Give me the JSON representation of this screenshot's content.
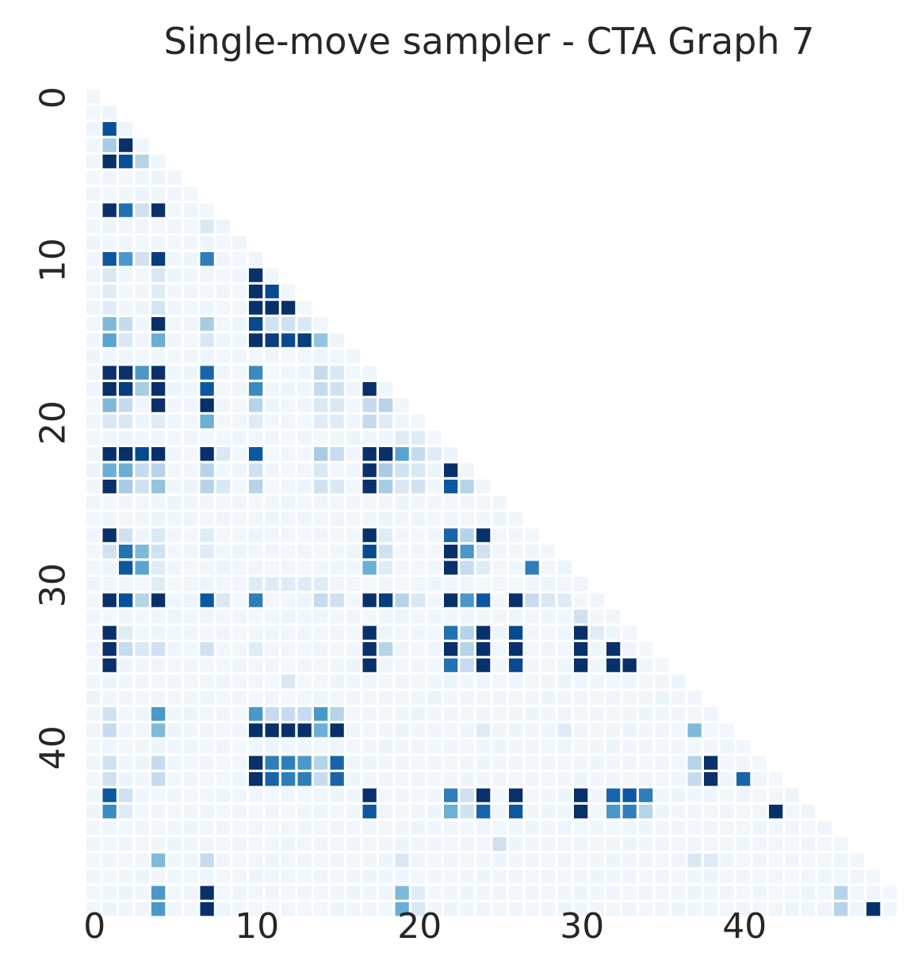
{
  "chart_data": {
    "type": "heatmap",
    "title": "Single-move sampler - CTA Graph 7",
    "n": 50,
    "shape": "lower-triangular",
    "colormap": "Blues",
    "colors": {
      "background": "#ffffff",
      "text": "#262626",
      "cmap_low": "#f7fbff",
      "cmap_high": "#08306b"
    },
    "xaxis": {
      "tick_values": [
        0,
        10,
        20,
        30,
        40
      ],
      "tick_labels": [
        "0",
        "10",
        "20",
        "30",
        "40"
      ]
    },
    "yaxis": {
      "tick_values": [
        0,
        10,
        20,
        30,
        40
      ],
      "tick_labels": [
        "0",
        "10",
        "20",
        "30",
        "40"
      ]
    },
    "grid": false,
    "colorbar": false,
    "value_range": [
      0,
      1
    ],
    "background_level": 0.05,
    "cells": [
      [
        2,
        1,
        0.88
      ],
      [
        3,
        1,
        0.35
      ],
      [
        3,
        2,
        1.0
      ],
      [
        4,
        1,
        1.0
      ],
      [
        4,
        2,
        0.88
      ],
      [
        4,
        3,
        0.3
      ],
      [
        7,
        1,
        1.0
      ],
      [
        7,
        2,
        0.75
      ],
      [
        7,
        3,
        0.2
      ],
      [
        7,
        4,
        1.0
      ],
      [
        8,
        7,
        0.15
      ],
      [
        10,
        1,
        0.85
      ],
      [
        10,
        2,
        0.6
      ],
      [
        10,
        3,
        0.2
      ],
      [
        10,
        4,
        0.95
      ],
      [
        10,
        7,
        0.7
      ],
      [
        11,
        1,
        0.15
      ],
      [
        11,
        4,
        0.15
      ],
      [
        11,
        10,
        1.0
      ],
      [
        12,
        1,
        0.12
      ],
      [
        12,
        4,
        0.12
      ],
      [
        12,
        10,
        1.0
      ],
      [
        12,
        11,
        0.9
      ],
      [
        13,
        1,
        0.12
      ],
      [
        13,
        4,
        0.18
      ],
      [
        13,
        10,
        1.0
      ],
      [
        13,
        11,
        1.0
      ],
      [
        13,
        12,
        1.0
      ],
      [
        14,
        1,
        0.45
      ],
      [
        14,
        2,
        0.25
      ],
      [
        14,
        4,
        1.0
      ],
      [
        14,
        7,
        0.35
      ],
      [
        14,
        10,
        0.9
      ],
      [
        14,
        11,
        0.2
      ],
      [
        14,
        12,
        0.2
      ],
      [
        14,
        13,
        0.15
      ],
      [
        15,
        1,
        0.55
      ],
      [
        15,
        2,
        0.15
      ],
      [
        15,
        4,
        0.5
      ],
      [
        15,
        7,
        0.15
      ],
      [
        15,
        10,
        1.0
      ],
      [
        15,
        11,
        0.95
      ],
      [
        15,
        12,
        0.9
      ],
      [
        15,
        13,
        0.95
      ],
      [
        15,
        14,
        0.4
      ],
      [
        17,
        1,
        1.0
      ],
      [
        17,
        2,
        1.0
      ],
      [
        17,
        3,
        0.6
      ],
      [
        17,
        4,
        1.0
      ],
      [
        17,
        7,
        0.8
      ],
      [
        17,
        10,
        0.65
      ],
      [
        17,
        14,
        0.25
      ],
      [
        17,
        15,
        0.15
      ],
      [
        18,
        1,
        1.0
      ],
      [
        18,
        2,
        0.95
      ],
      [
        18,
        3,
        0.35
      ],
      [
        18,
        4,
        1.0
      ],
      [
        18,
        7,
        0.85
      ],
      [
        18,
        10,
        0.65
      ],
      [
        18,
        14,
        0.25
      ],
      [
        18,
        15,
        0.2
      ],
      [
        18,
        17,
        1.0
      ],
      [
        19,
        1,
        0.45
      ],
      [
        19,
        2,
        0.25
      ],
      [
        19,
        4,
        1.0
      ],
      [
        19,
        7,
        1.0
      ],
      [
        19,
        10,
        0.3
      ],
      [
        19,
        14,
        0.15
      ],
      [
        19,
        15,
        0.15
      ],
      [
        19,
        17,
        0.25
      ],
      [
        19,
        18,
        0.3
      ],
      [
        20,
        1,
        0.15
      ],
      [
        20,
        2,
        0.15
      ],
      [
        20,
        4,
        0.12
      ],
      [
        20,
        7,
        0.5
      ],
      [
        20,
        10,
        0.12
      ],
      [
        20,
        14,
        0.12
      ],
      [
        20,
        15,
        0.12
      ],
      [
        20,
        17,
        0.25
      ],
      [
        20,
        18,
        0.12
      ],
      [
        21,
        19,
        0.12
      ],
      [
        21,
        20,
        0.12
      ],
      [
        22,
        1,
        1.0
      ],
      [
        22,
        2,
        1.0
      ],
      [
        22,
        3,
        0.9
      ],
      [
        22,
        4,
        1.0
      ],
      [
        22,
        7,
        1.0
      ],
      [
        22,
        8,
        0.15
      ],
      [
        22,
        10,
        0.85
      ],
      [
        22,
        14,
        0.35
      ],
      [
        22,
        15,
        0.25
      ],
      [
        22,
        17,
        1.0
      ],
      [
        22,
        18,
        1.0
      ],
      [
        22,
        19,
        0.55
      ],
      [
        22,
        20,
        0.25
      ],
      [
        22,
        21,
        0.12
      ],
      [
        23,
        1,
        0.5
      ],
      [
        23,
        2,
        0.5
      ],
      [
        23,
        3,
        0.25
      ],
      [
        23,
        4,
        0.3
      ],
      [
        23,
        7,
        0.3
      ],
      [
        23,
        10,
        0.2
      ],
      [
        23,
        14,
        0.15
      ],
      [
        23,
        17,
        1.0
      ],
      [
        23,
        18,
        0.35
      ],
      [
        23,
        19,
        0.2
      ],
      [
        23,
        20,
        0.15
      ],
      [
        23,
        22,
        1.0
      ],
      [
        24,
        1,
        1.0
      ],
      [
        24,
        2,
        0.35
      ],
      [
        24,
        3,
        0.2
      ],
      [
        24,
        4,
        0.4
      ],
      [
        24,
        7,
        0.3
      ],
      [
        24,
        8,
        0.15
      ],
      [
        24,
        10,
        0.3
      ],
      [
        24,
        14,
        0.2
      ],
      [
        24,
        15,
        0.15
      ],
      [
        24,
        17,
        1.0
      ],
      [
        24,
        18,
        0.35
      ],
      [
        24,
        19,
        0.15
      ],
      [
        24,
        20,
        0.2
      ],
      [
        24,
        22,
        0.85
      ],
      [
        24,
        23,
        0.3
      ],
      [
        27,
        1,
        1.0
      ],
      [
        27,
        2,
        0.2
      ],
      [
        27,
        4,
        0.15
      ],
      [
        27,
        7,
        0.12
      ],
      [
        27,
        17,
        1.0
      ],
      [
        27,
        18,
        0.12
      ],
      [
        27,
        22,
        0.8
      ],
      [
        27,
        23,
        0.3
      ],
      [
        27,
        24,
        1.0
      ],
      [
        28,
        1,
        0.2
      ],
      [
        28,
        2,
        0.75
      ],
      [
        28,
        3,
        0.45
      ],
      [
        28,
        4,
        0.2
      ],
      [
        28,
        7,
        0.12
      ],
      [
        28,
        17,
        0.9
      ],
      [
        28,
        18,
        0.2
      ],
      [
        28,
        22,
        1.0
      ],
      [
        28,
        23,
        0.6
      ],
      [
        28,
        24,
        0.2
      ],
      [
        29,
        2,
        0.85
      ],
      [
        29,
        3,
        0.55
      ],
      [
        29,
        4,
        0.12
      ],
      [
        29,
        17,
        0.5
      ],
      [
        29,
        18,
        0.12
      ],
      [
        29,
        22,
        1.0
      ],
      [
        29,
        23,
        0.25
      ],
      [
        29,
        24,
        0.12
      ],
      [
        29,
        27,
        0.7
      ],
      [
        30,
        4,
        0.12
      ],
      [
        30,
        10,
        0.12
      ],
      [
        30,
        11,
        0.12
      ],
      [
        30,
        12,
        0.12
      ],
      [
        30,
        13,
        0.12
      ],
      [
        30,
        14,
        0.12
      ],
      [
        31,
        1,
        1.0
      ],
      [
        31,
        2,
        0.88
      ],
      [
        31,
        3,
        0.3
      ],
      [
        31,
        4,
        1.0
      ],
      [
        31,
        7,
        0.85
      ],
      [
        31,
        8,
        0.15
      ],
      [
        31,
        10,
        0.7
      ],
      [
        31,
        14,
        0.25
      ],
      [
        31,
        15,
        0.2
      ],
      [
        31,
        17,
        1.0
      ],
      [
        31,
        18,
        0.95
      ],
      [
        31,
        19,
        0.3
      ],
      [
        31,
        20,
        0.15
      ],
      [
        31,
        22,
        1.0
      ],
      [
        31,
        23,
        0.6
      ],
      [
        31,
        24,
        0.85
      ],
      [
        31,
        26,
        1.0
      ],
      [
        31,
        27,
        0.25
      ],
      [
        31,
        28,
        0.15
      ],
      [
        31,
        29,
        0.12
      ],
      [
        32,
        30,
        0.2
      ],
      [
        33,
        1,
        1.0
      ],
      [
        33,
        2,
        0.12
      ],
      [
        33,
        17,
        1.0
      ],
      [
        33,
        22,
        0.75
      ],
      [
        33,
        23,
        0.3
      ],
      [
        33,
        24,
        1.0
      ],
      [
        33,
        26,
        0.9
      ],
      [
        33,
        30,
        1.0
      ],
      [
        33,
        31,
        0.12
      ],
      [
        34,
        1,
        1.0
      ],
      [
        34,
        2,
        0.25
      ],
      [
        34,
        3,
        0.15
      ],
      [
        34,
        4,
        0.2
      ],
      [
        34,
        7,
        0.2
      ],
      [
        34,
        10,
        0.12
      ],
      [
        34,
        17,
        1.0
      ],
      [
        34,
        18,
        0.3
      ],
      [
        34,
        22,
        1.0
      ],
      [
        34,
        23,
        0.3
      ],
      [
        34,
        24,
        1.0
      ],
      [
        34,
        26,
        1.0
      ],
      [
        34,
        30,
        1.0
      ],
      [
        34,
        32,
        1.0
      ],
      [
        35,
        1,
        1.0
      ],
      [
        35,
        17,
        1.0
      ],
      [
        35,
        22,
        0.75
      ],
      [
        35,
        23,
        0.25
      ],
      [
        35,
        24,
        1.0
      ],
      [
        35,
        26,
        0.9
      ],
      [
        35,
        30,
        1.0
      ],
      [
        35,
        32,
        1.0
      ],
      [
        35,
        33,
        1.0
      ],
      [
        36,
        12,
        0.15
      ],
      [
        38,
        1,
        0.2
      ],
      [
        38,
        4,
        0.6
      ],
      [
        38,
        10,
        0.6
      ],
      [
        38,
        11,
        0.25
      ],
      [
        38,
        12,
        0.25
      ],
      [
        38,
        13,
        0.25
      ],
      [
        38,
        14,
        0.6
      ],
      [
        38,
        15,
        0.3
      ],
      [
        39,
        1,
        0.25
      ],
      [
        39,
        4,
        0.45
      ],
      [
        39,
        10,
        1.0
      ],
      [
        39,
        11,
        1.0
      ],
      [
        39,
        12,
        1.0
      ],
      [
        39,
        13,
        1.0
      ],
      [
        39,
        14,
        0.5
      ],
      [
        39,
        15,
        1.0
      ],
      [
        39,
        24,
        0.12
      ],
      [
        39,
        29,
        0.12
      ],
      [
        39,
        37,
        0.45
      ],
      [
        41,
        1,
        0.2
      ],
      [
        41,
        4,
        0.25
      ],
      [
        41,
        10,
        1.0
      ],
      [
        41,
        11,
        0.7
      ],
      [
        41,
        12,
        0.7
      ],
      [
        41,
        13,
        0.6
      ],
      [
        41,
        14,
        0.3
      ],
      [
        41,
        15,
        0.8
      ],
      [
        41,
        37,
        0.3
      ],
      [
        41,
        38,
        1.0
      ],
      [
        42,
        1,
        0.2
      ],
      [
        42,
        4,
        0.25
      ],
      [
        42,
        10,
        1.0
      ],
      [
        42,
        11,
        0.8
      ],
      [
        42,
        12,
        0.7
      ],
      [
        42,
        13,
        0.7
      ],
      [
        42,
        14,
        0.25
      ],
      [
        42,
        15,
        0.8
      ],
      [
        42,
        37,
        0.25
      ],
      [
        42,
        38,
        1.0
      ],
      [
        42,
        40,
        0.8
      ],
      [
        43,
        1,
        0.85
      ],
      [
        43,
        2,
        0.2
      ],
      [
        43,
        17,
        1.0
      ],
      [
        43,
        22,
        0.7
      ],
      [
        43,
        23,
        0.2
      ],
      [
        43,
        24,
        1.0
      ],
      [
        43,
        26,
        1.0
      ],
      [
        43,
        30,
        1.0
      ],
      [
        43,
        32,
        0.8
      ],
      [
        43,
        33,
        0.85
      ],
      [
        43,
        34,
        0.7
      ],
      [
        44,
        1,
        0.65
      ],
      [
        44,
        2,
        0.12
      ],
      [
        44,
        17,
        0.85
      ],
      [
        44,
        22,
        0.5
      ],
      [
        44,
        23,
        0.2
      ],
      [
        44,
        24,
        0.8
      ],
      [
        44,
        26,
        0.85
      ],
      [
        44,
        30,
        1.0
      ],
      [
        44,
        32,
        0.6
      ],
      [
        44,
        33,
        0.7
      ],
      [
        44,
        34,
        0.3
      ],
      [
        44,
        42,
        1.0
      ],
      [
        46,
        25,
        0.2
      ],
      [
        47,
        4,
        0.45
      ],
      [
        47,
        7,
        0.25
      ],
      [
        47,
        19,
        0.15
      ],
      [
        47,
        37,
        0.15
      ],
      [
        47,
        38,
        0.12
      ],
      [
        49,
        4,
        0.6
      ],
      [
        49,
        7,
        1.0
      ],
      [
        49,
        19,
        0.45
      ],
      [
        49,
        20,
        0.12
      ],
      [
        49,
        46,
        0.3
      ],
      [
        50,
        4,
        0.6
      ],
      [
        50,
        7,
        1.0
      ],
      [
        50,
        19,
        0.5
      ],
      [
        50,
        20,
        0.15
      ],
      [
        50,
        46,
        0.3
      ],
      [
        50,
        48,
        1.0
      ]
    ]
  }
}
